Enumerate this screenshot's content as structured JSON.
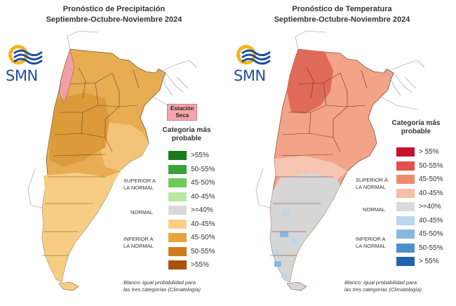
{
  "precip": {
    "title_line1": "Pronóstico de Precipitación",
    "title_line2": "Septiembre-Octubre-Noviembre 2024",
    "logo_text": "SMN",
    "dry_line1": "Estación",
    "dry_line2": "Seca",
    "legend_title_line1": "Categoría más",
    "legend_title_line2": "probable",
    "legend": [
      {
        "label": ">55%",
        "color": "#1a7a1a"
      },
      {
        "label": "50-55%",
        "color": "#3aa23a"
      },
      {
        "label": "45-50%",
        "color": "#6ccb5a"
      },
      {
        "label": "40-45%",
        "color": "#b9e6a0"
      },
      {
        "label": ">=40%",
        "color": "#d9d9d9"
      },
      {
        "label": "40-45%",
        "color": "#f9cf87"
      },
      {
        "label": "45-50%",
        "color": "#e6a33c"
      },
      {
        "label": "50-55%",
        "color": "#cf7c1c"
      },
      {
        "label": ">55%",
        "color": "#a8520c"
      }
    ],
    "group_superior_1": "SUPERIOR A",
    "group_superior_2": "LA NORMAL",
    "group_normal": "NORMAL",
    "group_inferior_1": "INFERIOR A",
    "group_inferior_2": "LA NORMAL",
    "note_line1": "Blanco: igual probabilidad para",
    "note_line2": "las tres categorías (Climatología)"
  },
  "temp": {
    "title_line1": "Pronóstico de Temperatura",
    "title_line2": "Septiembre-Octubre-Noviembre 2024",
    "logo_text": "SMN",
    "legend_title_line1": "Categoría más",
    "legend_title_line2": "probable",
    "legend": [
      {
        "label": "> 55%",
        "color": "#c8102e"
      },
      {
        "label": "50-55%",
        "color": "#e2504a"
      },
      {
        "label": "45-50%",
        "color": "#ef8a6e"
      },
      {
        "label": "40-45%",
        "color": "#f6c0a8"
      },
      {
        "label": ">=40%",
        "color": "#d9d9d9"
      },
      {
        "label": "40-45%",
        "color": "#b9d7ee"
      },
      {
        "label": "45-50%",
        "color": "#86b9e0"
      },
      {
        "label": "50-55%",
        "color": "#4d8fcc"
      },
      {
        "label": "> 55%",
        "color": "#1f64ad"
      }
    ],
    "group_superior_1": "SUPERIOR A",
    "group_superior_2": "LA NORMAL",
    "group_normal": "NORMAL",
    "group_inferior_1": "INFERIOR A",
    "group_inferior_2": "LA NORMAL",
    "note_line1": "Blanco: igual probabilidad para",
    "note_line2": "las tres categorías (Climatología)"
  }
}
